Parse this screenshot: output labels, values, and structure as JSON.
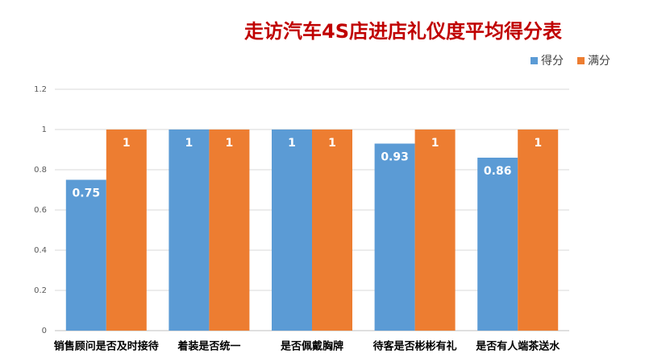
{
  "chart_data": {
    "type": "bar",
    "title": "走访汽车4S店进店礼仪度平均得分表",
    "categories": [
      "销售顾问是否及时接待",
      "着装是否统一",
      "是否佩戴胸牌",
      "待客是否彬彬有礼",
      "是否有人端茶送水"
    ],
    "series": [
      {
        "name": "得分",
        "color": "#5b9bd5",
        "values": [
          0.75,
          1,
          1,
          0.93,
          0.86
        ]
      },
      {
        "name": "满分",
        "color": "#ed7d31",
        "values": [
          1,
          1,
          1,
          1,
          1
        ]
      }
    ],
    "ylim": [
      0,
      1.2
    ],
    "yticks": [
      0,
      0.2,
      0.4,
      0.6,
      0.8,
      1,
      1.2
    ],
    "grid": true,
    "legend": "top-right"
  }
}
